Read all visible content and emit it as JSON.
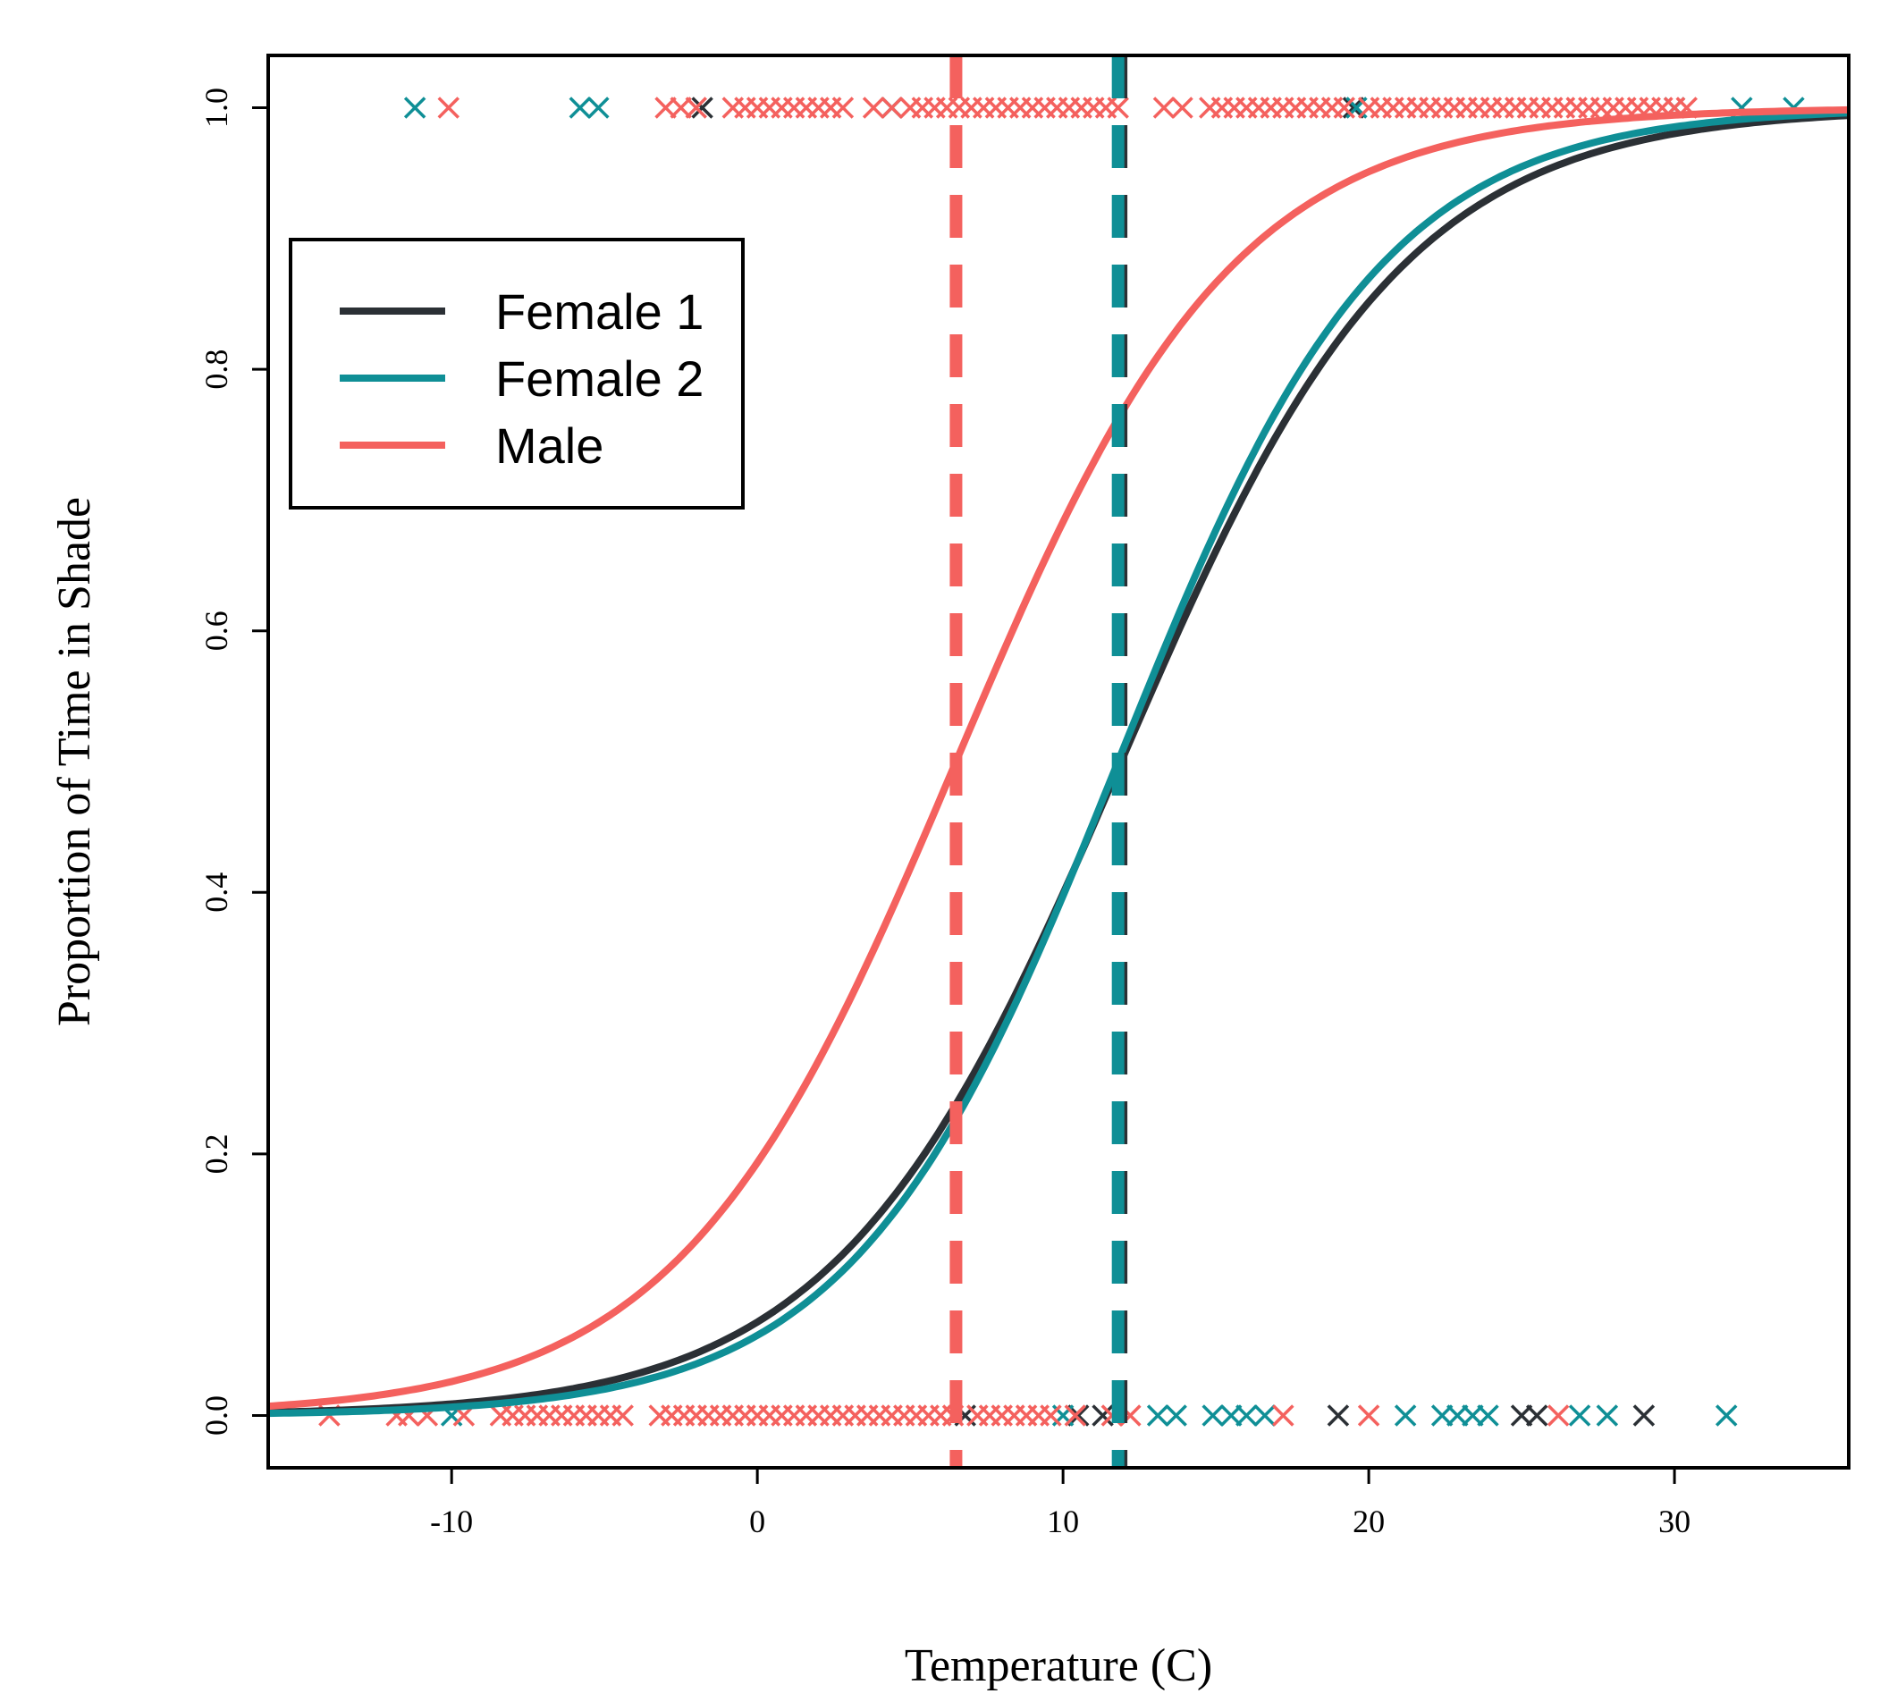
{
  "chart_data": {
    "type": "line",
    "xlabel": "Temperature (C)",
    "ylabel": "Proportion of Time in Shade",
    "xlim": [
      -16,
      35.7
    ],
    "ylim": [
      -0.04,
      1.04
    ],
    "x_ticks": [
      -10,
      0,
      10,
      20,
      30
    ],
    "x_tick_labels": [
      "-10",
      "0",
      "10",
      "20",
      "30"
    ],
    "y_ticks": [
      0,
      0.2,
      0.4,
      0.6,
      0.8,
      1.0
    ],
    "y_tick_labels": [
      "0.0",
      "0.2",
      "0.4",
      "0.6",
      "0.8",
      "1.0"
    ],
    "legend_position": "upper-left",
    "series": [
      {
        "name": "Female 1",
        "color": "#2b3035",
        "midpoint": 11.9,
        "slope": 0.2155,
        "threshold_line": 11.9,
        "obs_shade": [
          -1.8,
          19.5
        ],
        "obs_sun": [
          6.8,
          10.5,
          11.3,
          19.0,
          25.0,
          25.5,
          29.0
        ]
      },
      {
        "name": "Female 2",
        "color": "#0f8f96",
        "midpoint": 11.8,
        "slope": 0.2313,
        "threshold_line": 11.8,
        "obs_shade": [
          -11.2,
          -5.8,
          -5.2,
          4.4,
          19.6,
          30.0,
          32.2,
          33.9
        ],
        "obs_sun": [
          -10.0,
          10.0,
          13.1,
          13.7,
          14.9,
          15.5,
          16.0,
          16.6,
          21.2,
          22.4,
          22.9,
          23.4,
          23.9,
          26.9,
          27.8,
          31.7
        ]
      },
      {
        "name": "Male",
        "color": "#f4615e",
        "midpoint": 6.5,
        "slope": 0.2197,
        "threshold_line": 6.5,
        "obs_shade": [
          -10.1,
          -3.0,
          -2.5,
          -2.0,
          -0.8,
          -0.4,
          0.0,
          0.4,
          0.8,
          1.2,
          1.6,
          2.0,
          2.4,
          2.8,
          3.8,
          4.4,
          5.0,
          5.4,
          5.8,
          6.2,
          6.6,
          7.0,
          7.4,
          7.8,
          8.2,
          8.6,
          9.0,
          9.4,
          9.8,
          10.2,
          10.6,
          11.0,
          11.4,
          11.8,
          13.3,
          13.9,
          14.8,
          15.2,
          15.6,
          16.0,
          16.4,
          16.8,
          17.2,
          17.6,
          18.0,
          18.4,
          18.8,
          19.2,
          20.0,
          20.4,
          20.8,
          21.2,
          21.6,
          22.0,
          22.4,
          22.8,
          23.2,
          23.6,
          24.0,
          24.4,
          24.8,
          25.2,
          25.6,
          26.0,
          26.4,
          26.8,
          27.2,
          27.6,
          28.0,
          28.4,
          28.8,
          29.2,
          29.6,
          30.0,
          30.4
        ],
        "obs_sun": [
          -14.0,
          -11.8,
          -11.4,
          -10.8,
          -9.6,
          -8.4,
          -8.0,
          -7.6,
          -7.2,
          -6.8,
          -6.4,
          -6.0,
          -5.6,
          -5.2,
          -4.8,
          -4.4,
          -3.2,
          -2.8,
          -2.4,
          -2.0,
          -1.6,
          -1.2,
          -0.8,
          -0.4,
          0.0,
          0.4,
          0.8,
          1.2,
          1.6,
          2.0,
          2.4,
          2.8,
          3.2,
          3.6,
          4.0,
          4.4,
          4.8,
          5.2,
          5.6,
          6.0,
          6.4,
          7.2,
          7.6,
          8.0,
          8.4,
          8.8,
          9.2,
          9.6,
          10.4,
          11.6,
          12.2,
          17.2,
          20.0,
          26.2
        ]
      }
    ]
  }
}
